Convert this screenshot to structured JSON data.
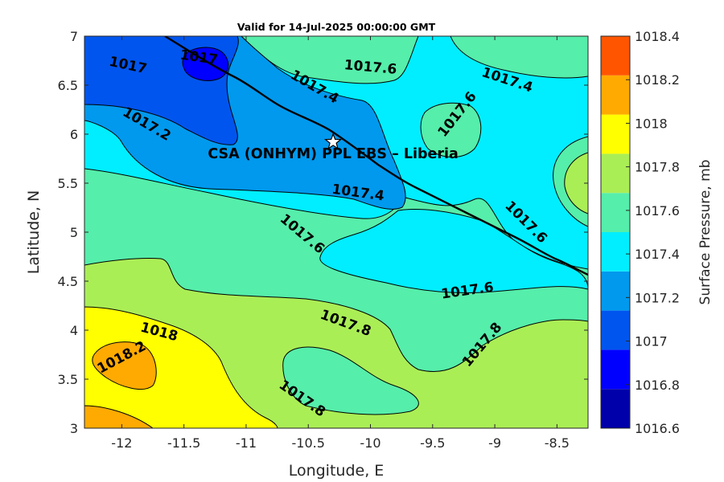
{
  "chart_data": {
    "type": "heatmap",
    "subtype": "filled-contour",
    "title": "Valid for 14-Jul-2025 00:00:00 GMT",
    "xlabel": "Longitude, E",
    "ylabel": "Latitude, N",
    "xlim": [
      -12.3,
      -8.25
    ],
    "ylim": [
      3,
      7
    ],
    "xticks": [
      -12,
      -11.5,
      -11,
      -10.5,
      -10,
      -9.5,
      -9,
      -8.5
    ],
    "yticks": [
      3,
      3.5,
      4,
      4.5,
      5,
      5.5,
      6,
      6.5,
      7
    ],
    "colorbar": {
      "label": "Surface Pressure, mb",
      "levels": [
        1016.6,
        1016.8,
        1017,
        1017.2,
        1017.4,
        1017.6,
        1017.8,
        1018,
        1018.2,
        1018.4
      ],
      "colors": [
        "#0000aa",
        "#0000ff",
        "#0055ee",
        "#0099ee",
        "#00eeff",
        "#55eeaa",
        "#aaee55",
        "#ffff00",
        "#ffaa00",
        "#ff5500"
      ]
    },
    "site": {
      "name": "CSA (ONHYM) PPL EBS  – Liberia",
      "lon": -10.3,
      "lat": 5.92
    },
    "contour_labels": [
      {
        "text": "1017",
        "lon": -11.95,
        "lat": 6.7,
        "angle": 12
      },
      {
        "text": "1017",
        "lon": -11.38,
        "lat": 6.78,
        "angle": 8
      },
      {
        "text": "1017.4",
        "lon": -10.45,
        "lat": 6.48,
        "angle": 30
      },
      {
        "text": "1017.6",
        "lon": -10.0,
        "lat": 6.68,
        "angle": 5
      },
      {
        "text": "1017.4",
        "lon": -8.9,
        "lat": 6.55,
        "angle": 18
      },
      {
        "text": "1017.2",
        "lon": -11.8,
        "lat": 6.1,
        "angle": 30
      },
      {
        "text": "1017.6",
        "lon": -9.3,
        "lat": 6.2,
        "angle": -52
      },
      {
        "text": "1017.4",
        "lon": -10.1,
        "lat": 5.4,
        "angle": 8
      },
      {
        "text": "1017.6",
        "lon": -10.55,
        "lat": 4.98,
        "angle": 40
      },
      {
        "text": "1017.6",
        "lon": -8.75,
        "lat": 5.1,
        "angle": 45
      },
      {
        "text": "1017.6",
        "lon": -9.22,
        "lat": 4.4,
        "angle": -8
      },
      {
        "text": "1017.8",
        "lon": -10.2,
        "lat": 4.07,
        "angle": 20
      },
      {
        "text": "1017.8",
        "lon": -9.1,
        "lat": 3.85,
        "angle": -50
      },
      {
        "text": "1018",
        "lon": -11.7,
        "lat": 3.98,
        "angle": 15
      },
      {
        "text": "1018.2",
        "lon": -12.0,
        "lat": 3.72,
        "angle": -28
      },
      {
        "text": "1017.8",
        "lon": -10.55,
        "lat": 3.3,
        "angle": 35
      }
    ]
  }
}
